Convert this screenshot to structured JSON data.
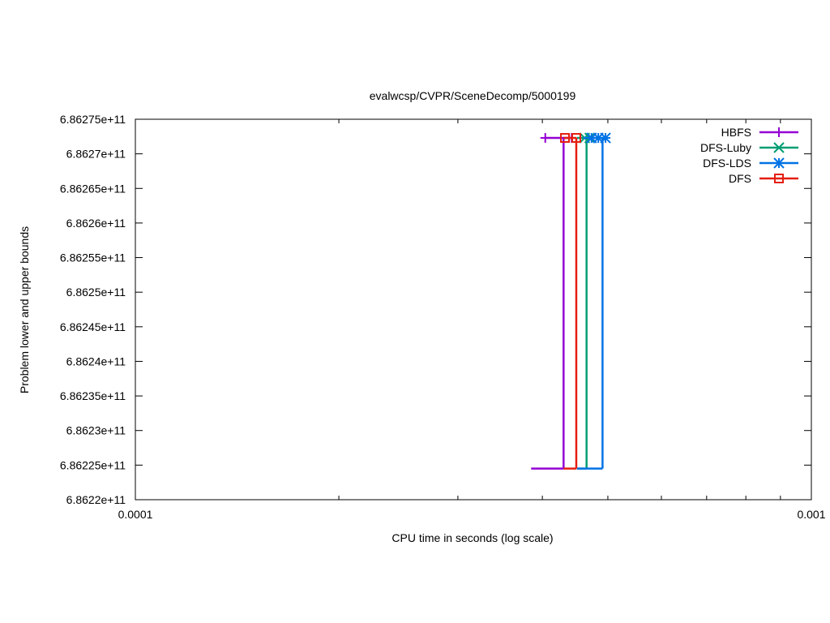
{
  "chart_data": {
    "type": "line",
    "title": "evalwcsp/CVPR/SceneDecomp/5000199",
    "xlabel": "CPU time in seconds (log scale)",
    "ylabel": "Problem lower and upper bounds",
    "x_scale": "log",
    "xlim": [
      0.0001,
      0.001
    ],
    "x_ticks": [
      0.0001,
      0.001
    ],
    "x_tick_labels": [
      "0.0001",
      "0.001"
    ],
    "ylim": [
      686220000000,
      686275000000
    ],
    "y_ticks": [
      686220000000,
      686225000000,
      686230000000,
      686235000000,
      686240000000,
      686245000000,
      686250000000,
      686255000000,
      686260000000,
      686265000000,
      686270000000,
      686275000000
    ],
    "y_tick_labels": [
      "6.8622e+11",
      "6.86225e+11",
      "6.8623e+11",
      "6.86235e+11",
      "6.8624e+11",
      "6.86245e+11",
      "6.8625e+11",
      "6.86255e+11",
      "6.8626e+11",
      "6.86265e+11",
      "6.8627e+11",
      "6.86275e+11"
    ],
    "grid": false,
    "legend_position": "top-right",
    "series": [
      {
        "name": "HBFS",
        "color": "#9400d3",
        "marker": "plus",
        "lower": [
          [
            0.000385,
            686224500000
          ],
          [
            0.00043,
            686224500000
          ]
        ],
        "step": [
          [
            0.00043,
            686224500000
          ],
          [
            0.00043,
            686272300000
          ]
        ],
        "upper": [
          [
            0.000404,
            686272300000
          ],
          [
            0.000442,
            686272300000
          ]
        ],
        "markers": [
          [
            0.000404,
            686272300000
          ],
          [
            0.000442,
            686272300000
          ]
        ]
      },
      {
        "name": "DFS-Luby",
        "color": "#009e73",
        "marker": "cross",
        "lower": [
          [
            0.00045,
            686224500000
          ],
          [
            0.000465,
            686224500000
          ]
        ],
        "step": [
          [
            0.000465,
            686224500000
          ],
          [
            0.000465,
            686272300000
          ]
        ],
        "upper": [
          [
            0.00045,
            686272300000
          ],
          [
            0.00047,
            686272300000
          ]
        ],
        "markers": [
          [
            0.000462,
            686272300000
          ],
          [
            0.00047,
            686272300000
          ]
        ]
      },
      {
        "name": "DFS-LDS",
        "color": "#0072e5",
        "marker": "star",
        "lower": [
          [
            0.00045,
            686224500000
          ],
          [
            0.000491,
            686224500000
          ]
        ],
        "step": [
          [
            0.000491,
            686224500000
          ],
          [
            0.000491,
            686272300000
          ]
        ],
        "upper": [
          [
            0.00046,
            686272300000
          ],
          [
            0.000496,
            686272300000
          ]
        ],
        "markers": [
          [
            0.000473,
            686272300000
          ],
          [
            0.000484,
            686272300000
          ],
          [
            0.000496,
            686272300000
          ]
        ]
      },
      {
        "name": "DFS",
        "color": "#e51e10",
        "marker": "square",
        "lower": [
          [
            0.00043,
            686224500000
          ],
          [
            0.000449,
            686224500000
          ]
        ],
        "step": [
          [
            0.000449,
            686224500000
          ],
          [
            0.000449,
            686272300000
          ]
        ],
        "upper": [
          [
            0.00043,
            686272300000
          ],
          [
            0.000449,
            686272300000
          ]
        ],
        "markers": [
          [
            0.000432,
            686272300000
          ],
          [
            0.000449,
            686272300000
          ]
        ]
      }
    ]
  }
}
